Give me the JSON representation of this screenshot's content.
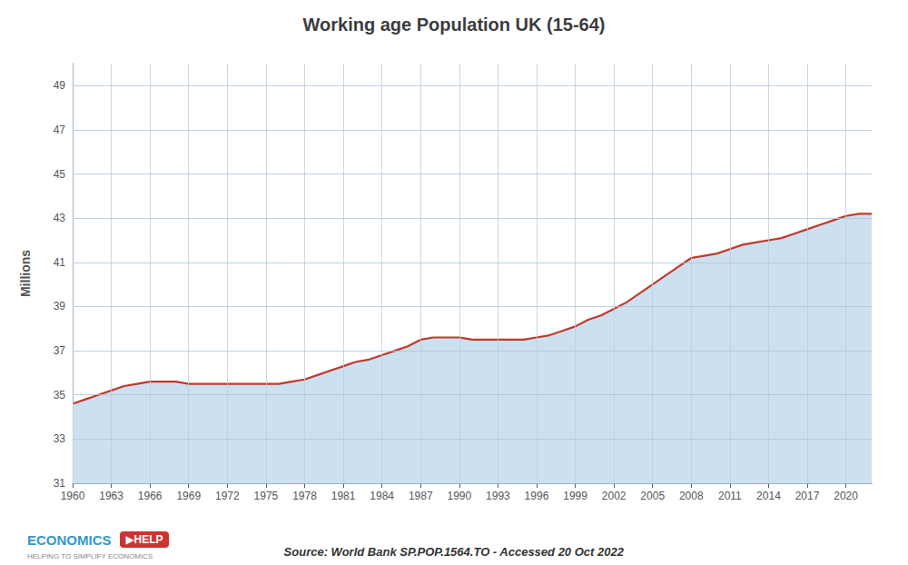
{
  "chart_data": {
    "type": "area",
    "title": "Working age Population UK (15-64)",
    "ylabel": "Millions",
    "x": [
      1960,
      1961,
      1962,
      1963,
      1964,
      1965,
      1966,
      1967,
      1968,
      1969,
      1970,
      1971,
      1972,
      1973,
      1974,
      1975,
      1976,
      1977,
      1978,
      1979,
      1980,
      1981,
      1982,
      1983,
      1984,
      1985,
      1986,
      1987,
      1988,
      1989,
      1990,
      1991,
      1992,
      1993,
      1994,
      1995,
      1996,
      1997,
      1998,
      1999,
      2000,
      2001,
      2002,
      2003,
      2004,
      2005,
      2006,
      2007,
      2008,
      2009,
      2010,
      2011,
      2012,
      2013,
      2014,
      2015,
      2016,
      2017,
      2018,
      2019,
      2020,
      2021,
      2022
    ],
    "values": [
      34.6,
      34.8,
      35.0,
      35.2,
      35.4,
      35.5,
      35.6,
      35.6,
      35.6,
      35.5,
      35.5,
      35.5,
      35.5,
      35.5,
      35.5,
      35.5,
      35.5,
      35.6,
      35.7,
      35.9,
      36.1,
      36.3,
      36.5,
      36.6,
      36.8,
      37.0,
      37.2,
      37.5,
      37.6,
      37.6,
      37.6,
      37.5,
      37.5,
      37.5,
      37.5,
      37.5,
      37.6,
      37.7,
      37.9,
      38.1,
      38.4,
      38.6,
      38.9,
      39.2,
      39.6,
      40.0,
      40.4,
      40.8,
      41.2,
      41.3,
      41.4,
      41.6,
      41.8,
      41.9,
      42.0,
      42.1,
      42.3,
      42.5,
      42.7,
      42.9,
      43.1,
      43.2,
      43.2
    ],
    "color": "#c0392b",
    "xlim": [
      1960,
      2022
    ],
    "xticks": [
      1960,
      1963,
      1966,
      1969,
      1972,
      1975,
      1978,
      1981,
      1984,
      1987,
      1990,
      1993,
      1996,
      1999,
      2002,
      2005,
      2008,
      2011,
      2014,
      2017,
      2020
    ],
    "ylim": [
      31,
      50
    ],
    "yticks": [
      31,
      33,
      35,
      37,
      39,
      41,
      43,
      45,
      47,
      49
    ],
    "grid": true,
    "annotations": [
      "Source: World Bank SP.POP.1564.TO - Accessed 20 Oct 2022",
      "ECONOMICS",
      "▶HELP",
      "HELPING TO SIMPLIFY ECONOMICS"
    ]
  }
}
